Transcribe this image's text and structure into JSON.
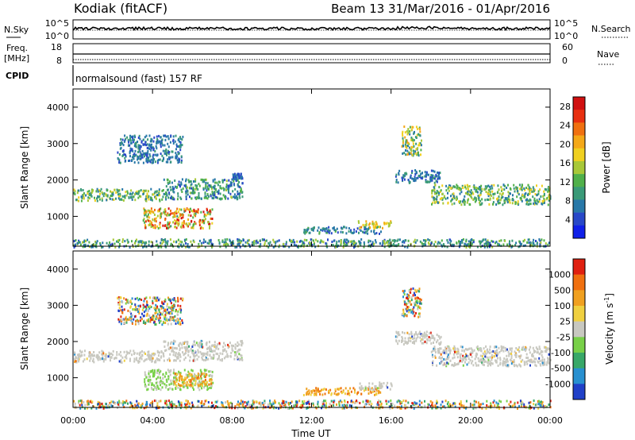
{
  "header": {
    "radar": "Kodiak (fitACF)",
    "beam_date": "Beam 13  31/Mar/2016 - 01/Apr/2016"
  },
  "top_panels": {
    "nsky_label": "N.Sky",
    "nsky_ticks": [
      "10^5",
      "10^0"
    ],
    "nsearch_label": "N.Search",
    "nsearch_ticks": [
      "10^5",
      "10^0"
    ],
    "freq_label_1": "Freq.",
    "freq_label_2": "[MHz]",
    "freq_ticks": [
      "18",
      "8"
    ],
    "nave_label": "Nave",
    "nave_ticks": [
      "60",
      "0"
    ],
    "cpid_label": "CPID",
    "cpid_value": "normalsound (fast) 157 RF"
  },
  "chart_data": [
    {
      "type": "heatmap",
      "name": "power",
      "ylabel": "Slant Range [km]",
      "xlabel": "Time UT",
      "x_ticks": [
        "00:00",
        "04:00",
        "08:00",
        "12:00",
        "16:00",
        "20:00",
        "00:00"
      ],
      "xlim_hours": [
        0,
        24
      ],
      "ylim_km": [
        180,
        4500
      ],
      "y_ticks": [
        1000,
        2000,
        3000,
        4000
      ],
      "colorbar": {
        "label": "Power [dB]",
        "ticks": [
          "4",
          "8",
          "12",
          "16",
          "20",
          "24",
          "28"
        ],
        "range": [
          0,
          30
        ],
        "colors": [
          "#1020e8",
          "#2848c8",
          "#2878a8",
          "#3a9a78",
          "#50b04a",
          "#a8c838",
          "#f0d020",
          "#f4a818",
          "#f07010",
          "#e83010",
          "#d01010"
        ]
      },
      "echo_regions": [
        {
          "t0": 0.0,
          "t1": 4.5,
          "r0": 1450,
          "r1": 1780,
          "level": [
            6,
            18
          ]
        },
        {
          "t0": 4.5,
          "t1": 8.5,
          "r0": 1500,
          "r1": 2050,
          "level": [
            4,
            14
          ]
        },
        {
          "t0": 2.2,
          "t1": 5.5,
          "r0": 2500,
          "r1": 3250,
          "level": [
            4,
            10
          ]
        },
        {
          "t0": 3.5,
          "t1": 7.0,
          "r0": 700,
          "r1": 1250,
          "level": [
            10,
            29
          ]
        },
        {
          "t0": 8.0,
          "t1": 8.5,
          "r0": 2050,
          "r1": 2200,
          "level": [
            4,
            8
          ]
        },
        {
          "t0": 11.5,
          "t1": 15.5,
          "r0": 550,
          "r1": 750,
          "level": [
            4,
            12
          ]
        },
        {
          "t0": 14.3,
          "t1": 16.0,
          "r0": 700,
          "r1": 900,
          "level": [
            14,
            22
          ]
        },
        {
          "t0": 16.2,
          "t1": 18.5,
          "r0": 1950,
          "r1": 2300,
          "level": [
            4,
            10
          ]
        },
        {
          "t0": 18.0,
          "t1": 24.0,
          "r0": 1350,
          "r1": 1900,
          "level": [
            6,
            18
          ]
        },
        {
          "t0": 16.5,
          "t1": 17.5,
          "r0": 2700,
          "r1": 3500,
          "level": [
            6,
            22
          ]
        },
        {
          "t0": 0.0,
          "t1": 24.0,
          "r0": 180,
          "r1": 400,
          "level": [
            4,
            16
          ]
        }
      ]
    },
    {
      "type": "heatmap",
      "name": "velocity",
      "ylabel": "Slant Range [km]",
      "xlabel": "Time UT",
      "x_ticks": [
        "00:00",
        "04:00",
        "08:00",
        "12:00",
        "16:00",
        "20:00",
        "00:00"
      ],
      "xlim_hours": [
        0,
        24
      ],
      "ylim_km": [
        180,
        4500
      ],
      "y_ticks": [
        1000,
        2000,
        3000,
        4000
      ],
      "colorbar": {
        "label": "Velocity [m s^-1]",
        "unit_exponent": "-1",
        "ticks": [
          "1000",
          "500",
          "100",
          "25",
          "-25",
          "-100",
          "-500",
          "-1000"
        ],
        "colors": [
          "#2040c8",
          "#2890d0",
          "#38a868",
          "#78d048",
          "#c8c8c0",
          "#f0d040",
          "#f0a020",
          "#f07010",
          "#e02010"
        ]
      },
      "echo_regions": [
        {
          "t0": 0.0,
          "t1": 4.5,
          "r0": 1450,
          "r1": 1780,
          "vel": "ground"
        },
        {
          "t0": 4.5,
          "t1": 8.5,
          "r0": 1500,
          "r1": 2050,
          "vel": "ground"
        },
        {
          "t0": 2.2,
          "t1": 5.5,
          "r0": 2500,
          "r1": 3250,
          "vel": "mixed"
        },
        {
          "t0": 3.5,
          "t1": 7.0,
          "r0": 700,
          "r1": 1250,
          "vel": "positive"
        },
        {
          "t0": 5.0,
          "t1": 7.0,
          "r0": 800,
          "r1": 1150,
          "vel": "negative"
        },
        {
          "t0": 11.5,
          "t1": 15.5,
          "r0": 550,
          "r1": 750,
          "vel": "negative"
        },
        {
          "t0": 14.3,
          "t1": 16.0,
          "r0": 700,
          "r1": 900,
          "vel": "ground"
        },
        {
          "t0": 16.2,
          "t1": 18.5,
          "r0": 1950,
          "r1": 2300,
          "vel": "ground"
        },
        {
          "t0": 18.0,
          "t1": 24.0,
          "r0": 1350,
          "r1": 1900,
          "vel": "ground"
        },
        {
          "t0": 16.5,
          "t1": 17.5,
          "r0": 2700,
          "r1": 3500,
          "vel": "mixed"
        },
        {
          "t0": 0.0,
          "t1": 24.0,
          "r0": 180,
          "r1": 400,
          "vel": "mixed"
        }
      ]
    }
  ]
}
